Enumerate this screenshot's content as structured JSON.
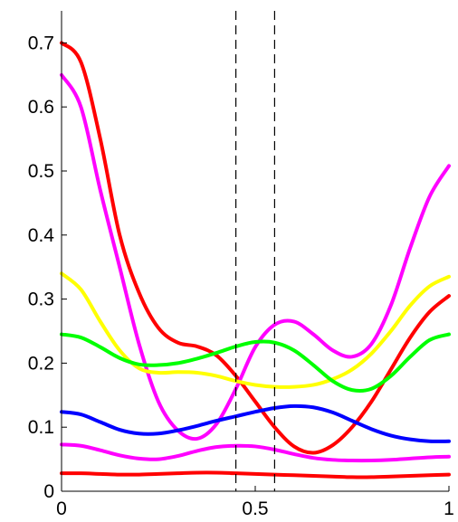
{
  "chart_data": {
    "type": "line",
    "title": "",
    "xlabel": "",
    "ylabel": "",
    "xlim": [
      0,
      1
    ],
    "ylim": [
      0,
      0.75
    ],
    "grid": false,
    "legend": "none",
    "x_ticks": [
      {
        "value": 0,
        "label": "0"
      },
      {
        "value": 0.5,
        "label": "0.5"
      },
      {
        "value": 1,
        "label": "1"
      }
    ],
    "y_ticks": [
      {
        "value": 0,
        "label": "0"
      },
      {
        "value": 0.1,
        "label": "0.1"
      },
      {
        "value": 0.2,
        "label": "0.2"
      },
      {
        "value": 0.3,
        "label": "0.3"
      },
      {
        "value": 0.4,
        "label": "0.4"
      },
      {
        "value": 0.5,
        "label": "0.5"
      },
      {
        "value": 0.6,
        "label": "0.6"
      },
      {
        "value": 0.7,
        "label": "0.7"
      }
    ],
    "vertical_lines": [
      0.45,
      0.55
    ],
    "series": [
      {
        "color": "#ff0000",
        "points": [
          [
            0,
            0.7
          ],
          [
            0.05,
            0.67
          ],
          [
            0.1,
            0.55
          ],
          [
            0.15,
            0.4
          ],
          [
            0.2,
            0.31
          ],
          [
            0.25,
            0.255
          ],
          [
            0.3,
            0.232
          ],
          [
            0.35,
            0.226
          ],
          [
            0.4,
            0.212
          ],
          [
            0.45,
            0.18
          ],
          [
            0.5,
            0.14
          ],
          [
            0.55,
            0.1
          ],
          [
            0.6,
            0.07
          ],
          [
            0.65,
            0.06
          ],
          [
            0.7,
            0.072
          ],
          [
            0.75,
            0.1
          ],
          [
            0.8,
            0.14
          ],
          [
            0.85,
            0.19
          ],
          [
            0.9,
            0.24
          ],
          [
            0.95,
            0.28
          ],
          [
            1.0,
            0.305
          ]
        ]
      },
      {
        "color": "#ff00ff",
        "points": [
          [
            0,
            0.65
          ],
          [
            0.05,
            0.6
          ],
          [
            0.1,
            0.47
          ],
          [
            0.15,
            0.35
          ],
          [
            0.2,
            0.23
          ],
          [
            0.25,
            0.14
          ],
          [
            0.3,
            0.095
          ],
          [
            0.35,
            0.082
          ],
          [
            0.4,
            0.105
          ],
          [
            0.45,
            0.16
          ],
          [
            0.5,
            0.225
          ],
          [
            0.55,
            0.26
          ],
          [
            0.6,
            0.265
          ],
          [
            0.65,
            0.245
          ],
          [
            0.7,
            0.22
          ],
          [
            0.75,
            0.21
          ],
          [
            0.8,
            0.23
          ],
          [
            0.85,
            0.29
          ],
          [
            0.9,
            0.38
          ],
          [
            0.95,
            0.46
          ],
          [
            1.0,
            0.508
          ]
        ]
      },
      {
        "color": "#ffff00",
        "points": [
          [
            0,
            0.34
          ],
          [
            0.05,
            0.315
          ],
          [
            0.1,
            0.265
          ],
          [
            0.15,
            0.22
          ],
          [
            0.2,
            0.192
          ],
          [
            0.25,
            0.185
          ],
          [
            0.3,
            0.186
          ],
          [
            0.35,
            0.185
          ],
          [
            0.4,
            0.18
          ],
          [
            0.45,
            0.172
          ],
          [
            0.5,
            0.166
          ],
          [
            0.55,
            0.163
          ],
          [
            0.6,
            0.163
          ],
          [
            0.65,
            0.166
          ],
          [
            0.7,
            0.175
          ],
          [
            0.75,
            0.19
          ],
          [
            0.8,
            0.215
          ],
          [
            0.85,
            0.25
          ],
          [
            0.9,
            0.29
          ],
          [
            0.95,
            0.32
          ],
          [
            1.0,
            0.335
          ]
        ]
      },
      {
        "color": "#00ff00",
        "points": [
          [
            0,
            0.245
          ],
          [
            0.05,
            0.24
          ],
          [
            0.1,
            0.225
          ],
          [
            0.15,
            0.208
          ],
          [
            0.2,
            0.198
          ],
          [
            0.25,
            0.197
          ],
          [
            0.3,
            0.2
          ],
          [
            0.35,
            0.207
          ],
          [
            0.4,
            0.216
          ],
          [
            0.45,
            0.226
          ],
          [
            0.5,
            0.233
          ],
          [
            0.55,
            0.232
          ],
          [
            0.6,
            0.22
          ],
          [
            0.65,
            0.197
          ],
          [
            0.7,
            0.172
          ],
          [
            0.75,
            0.158
          ],
          [
            0.8,
            0.16
          ],
          [
            0.85,
            0.18
          ],
          [
            0.9,
            0.21
          ],
          [
            0.95,
            0.236
          ],
          [
            1.0,
            0.245
          ]
        ]
      },
      {
        "color": "#0000ff",
        "points": [
          [
            0,
            0.124
          ],
          [
            0.05,
            0.12
          ],
          [
            0.1,
            0.108
          ],
          [
            0.15,
            0.096
          ],
          [
            0.2,
            0.09
          ],
          [
            0.25,
            0.09
          ],
          [
            0.3,
            0.095
          ],
          [
            0.35,
            0.102
          ],
          [
            0.4,
            0.11
          ],
          [
            0.45,
            0.117
          ],
          [
            0.5,
            0.124
          ],
          [
            0.55,
            0.13
          ],
          [
            0.6,
            0.133
          ],
          [
            0.65,
            0.131
          ],
          [
            0.7,
            0.123
          ],
          [
            0.75,
            0.11
          ],
          [
            0.8,
            0.097
          ],
          [
            0.85,
            0.087
          ],
          [
            0.9,
            0.081
          ],
          [
            0.95,
            0.078
          ],
          [
            1.0,
            0.078
          ]
        ]
      },
      {
        "color": "#ff00ff",
        "points": [
          [
            0,
            0.073
          ],
          [
            0.05,
            0.071
          ],
          [
            0.1,
            0.064
          ],
          [
            0.15,
            0.056
          ],
          [
            0.2,
            0.051
          ],
          [
            0.25,
            0.05
          ],
          [
            0.3,
            0.055
          ],
          [
            0.35,
            0.063
          ],
          [
            0.4,
            0.069
          ],
          [
            0.45,
            0.071
          ],
          [
            0.5,
            0.07
          ],
          [
            0.55,
            0.065
          ],
          [
            0.6,
            0.058
          ],
          [
            0.65,
            0.052
          ],
          [
            0.7,
            0.049
          ],
          [
            0.75,
            0.048
          ],
          [
            0.8,
            0.048
          ],
          [
            0.85,
            0.049
          ],
          [
            0.9,
            0.051
          ],
          [
            0.95,
            0.053
          ],
          [
            1.0,
            0.054
          ]
        ]
      },
      {
        "color": "#ff0000",
        "points": [
          [
            0,
            0.028
          ],
          [
            0.05,
            0.028
          ],
          [
            0.1,
            0.027
          ],
          [
            0.15,
            0.026
          ],
          [
            0.2,
            0.026
          ],
          [
            0.25,
            0.027
          ],
          [
            0.3,
            0.028
          ],
          [
            0.35,
            0.029
          ],
          [
            0.4,
            0.029
          ],
          [
            0.45,
            0.028
          ],
          [
            0.5,
            0.027
          ],
          [
            0.55,
            0.026
          ],
          [
            0.6,
            0.025
          ],
          [
            0.65,
            0.024
          ],
          [
            0.7,
            0.023
          ],
          [
            0.75,
            0.022
          ],
          [
            0.8,
            0.022
          ],
          [
            0.85,
            0.023
          ],
          [
            0.9,
            0.024
          ],
          [
            0.95,
            0.025
          ],
          [
            1.0,
            0.026
          ]
        ]
      }
    ]
  }
}
